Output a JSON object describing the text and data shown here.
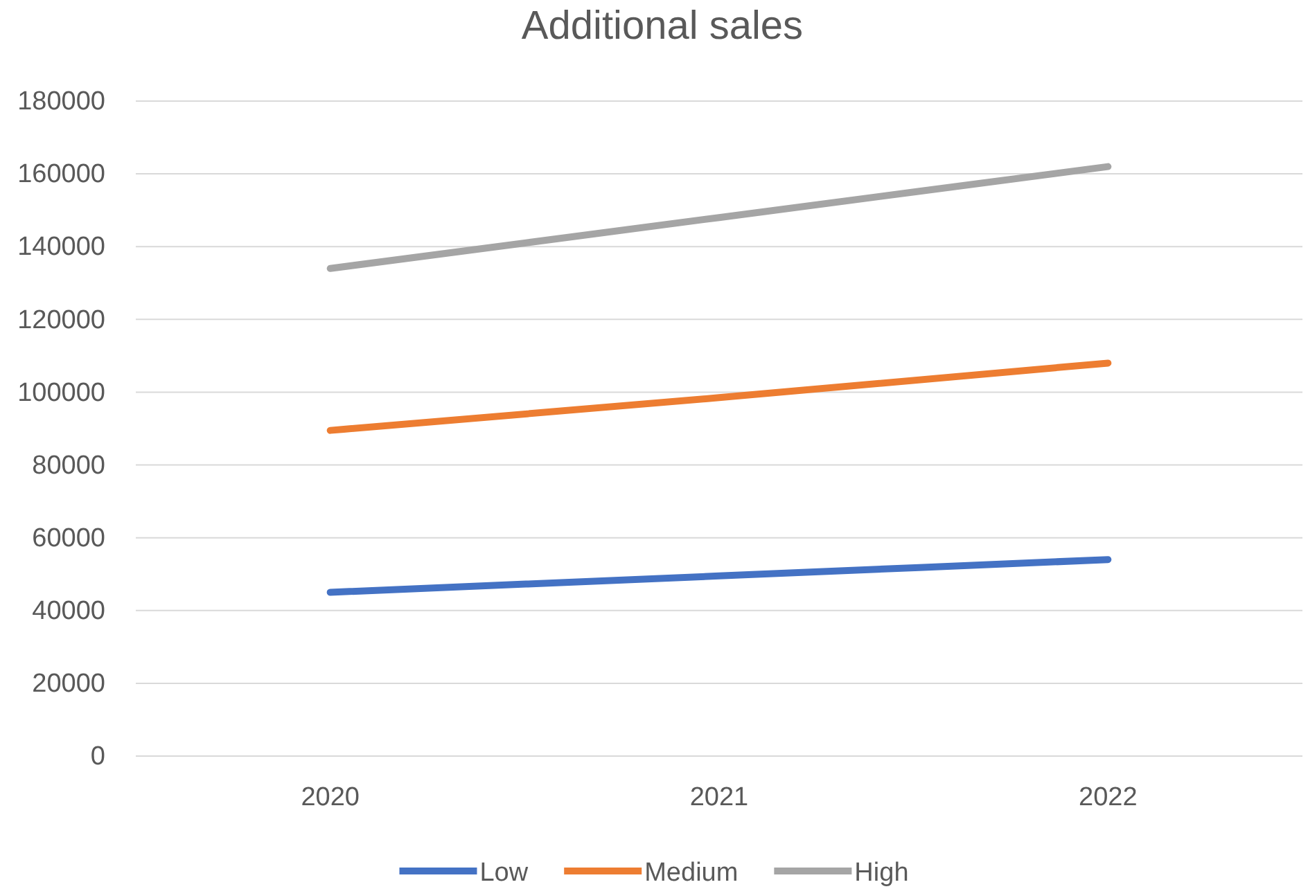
{
  "chart_data": {
    "type": "line",
    "title": "Additional sales",
    "categories": [
      "2020",
      "2021",
      "2022"
    ],
    "series": [
      {
        "name": "Low",
        "color": "#4472c4",
        "values": [
          45000,
          49500,
          54000
        ]
      },
      {
        "name": "Medium",
        "color": "#ed7d31",
        "values": [
          89500,
          98500,
          108000
        ]
      },
      {
        "name": "High",
        "color": "#a5a5a5",
        "values": [
          134000,
          148000,
          162000
        ]
      }
    ],
    "ylim": [
      0,
      180000
    ],
    "yticks": [
      0,
      20000,
      40000,
      60000,
      80000,
      100000,
      120000,
      140000,
      160000,
      180000
    ],
    "grid": "y",
    "legend": "bottom",
    "marker": "none",
    "line_style": "solid"
  }
}
